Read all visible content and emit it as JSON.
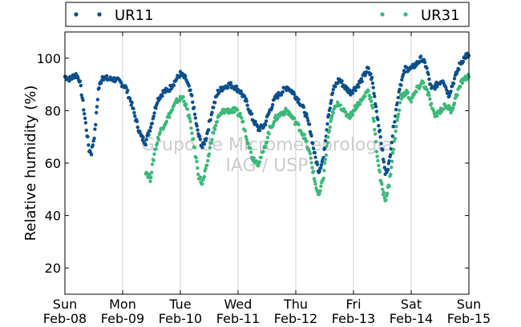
{
  "chart_data": {
    "type": "scatter",
    "title": "",
    "xlabel": "",
    "ylabel": "Relative humidity (%)",
    "xlim": [
      0,
      7
    ],
    "ylim": [
      10,
      110
    ],
    "yticks": [
      20,
      40,
      60,
      80,
      100
    ],
    "xticks": [
      {
        "day": 0,
        "weekday": "Sun",
        "date": "Feb-08"
      },
      {
        "day": 1,
        "weekday": "Mon",
        "date": "Feb-09"
      },
      {
        "day": 2,
        "weekday": "Tue",
        "date": "Feb-10"
      },
      {
        "day": 3,
        "weekday": "Wed",
        "date": "Feb-11"
      },
      {
        "day": 4,
        "weekday": "Thu",
        "date": "Feb-12"
      },
      {
        "day": 5,
        "weekday": "Fri",
        "date": "Feb-13"
      },
      {
        "day": 6,
        "weekday": "Sat",
        "date": "Feb-14"
      },
      {
        "day": 7,
        "weekday": "Sun",
        "date": "Feb-15"
      }
    ],
    "grid": "vertical",
    "legend_position": "top",
    "watermark": [
      "Grupo de Micrometeorologia",
      "IAG / USP"
    ],
    "series": [
      {
        "name": "UR11",
        "color": "#0b4f8c",
        "points": [
          [
            0.0,
            93
          ],
          [
            0.1,
            92
          ],
          [
            0.18,
            94
          ],
          [
            0.25,
            92
          ],
          [
            0.3,
            85
          ],
          [
            0.36,
            75
          ],
          [
            0.42,
            65
          ],
          [
            0.46,
            64
          ],
          [
            0.52,
            72
          ],
          [
            0.58,
            88
          ],
          [
            0.65,
            93
          ],
          [
            0.75,
            92
          ],
          [
            0.85,
            92
          ],
          [
            0.95,
            91
          ],
          [
            1.05,
            89
          ],
          [
            1.15,
            83
          ],
          [
            1.25,
            75
          ],
          [
            1.32,
            70
          ],
          [
            1.4,
            68
          ],
          [
            1.5,
            75
          ],
          [
            1.6,
            84
          ],
          [
            1.7,
            87
          ],
          [
            1.8,
            88
          ],
          [
            1.9,
            91
          ],
          [
            2.0,
            94
          ],
          [
            2.1,
            92
          ],
          [
            2.2,
            85
          ],
          [
            2.3,
            72
          ],
          [
            2.38,
            66
          ],
          [
            2.45,
            70
          ],
          [
            2.55,
            80
          ],
          [
            2.65,
            87
          ],
          [
            2.75,
            89
          ],
          [
            2.85,
            90
          ],
          [
            2.95,
            89
          ],
          [
            3.05,
            87
          ],
          [
            3.15,
            83
          ],
          [
            3.25,
            77
          ],
          [
            3.35,
            73
          ],
          [
            3.45,
            74
          ],
          [
            3.55,
            80
          ],
          [
            3.65,
            85
          ],
          [
            3.75,
            87
          ],
          [
            3.85,
            89
          ],
          [
            3.95,
            87
          ],
          [
            4.05,
            84
          ],
          [
            4.15,
            80
          ],
          [
            4.25,
            73
          ],
          [
            4.33,
            63
          ],
          [
            4.4,
            57
          ],
          [
            4.48,
            62
          ],
          [
            4.56,
            78
          ],
          [
            4.65,
            88
          ],
          [
            4.75,
            92
          ],
          [
            4.85,
            89
          ],
          [
            4.95,
            87
          ],
          [
            5.05,
            89
          ],
          [
            5.15,
            92
          ],
          [
            5.25,
            96
          ],
          [
            5.32,
            92
          ],
          [
            5.4,
            80
          ],
          [
            5.48,
            68
          ],
          [
            5.55,
            56
          ],
          [
            5.62,
            60
          ],
          [
            5.7,
            75
          ],
          [
            5.8,
            89
          ],
          [
            5.9,
            96
          ],
          [
            6.0,
            96
          ],
          [
            6.1,
            98
          ],
          [
            6.18,
            100
          ],
          [
            6.26,
            97
          ],
          [
            6.35,
            88
          ],
          [
            6.45,
            90
          ],
          [
            6.55,
            92
          ],
          [
            6.65,
            86
          ],
          [
            6.75,
            92
          ],
          [
            6.85,
            98
          ],
          [
            6.95,
            101
          ],
          [
            7.0,
            101
          ]
        ]
      },
      {
        "name": "UR31",
        "color": "#3db879",
        "points": [
          [
            1.4,
            57
          ],
          [
            1.48,
            54
          ],
          [
            1.56,
            65
          ],
          [
            1.65,
            72
          ],
          [
            1.75,
            76
          ],
          [
            1.85,
            80
          ],
          [
            1.95,
            84
          ],
          [
            2.05,
            85
          ],
          [
            2.15,
            78
          ],
          [
            2.25,
            65
          ],
          [
            2.32,
            55
          ],
          [
            2.38,
            52
          ],
          [
            2.45,
            58
          ],
          [
            2.55,
            70
          ],
          [
            2.65,
            77
          ],
          [
            2.75,
            80
          ],
          [
            2.85,
            80
          ],
          [
            2.95,
            80
          ],
          [
            3.05,
            78
          ],
          [
            3.15,
            70
          ],
          [
            3.25,
            62
          ],
          [
            3.35,
            60
          ],
          [
            3.45,
            65
          ],
          [
            3.55,
            73
          ],
          [
            3.65,
            77
          ],
          [
            3.75,
            79
          ],
          [
            3.85,
            80
          ],
          [
            3.95,
            77
          ],
          [
            4.05,
            74
          ],
          [
            4.15,
            70
          ],
          [
            4.25,
            63
          ],
          [
            4.33,
            53
          ],
          [
            4.4,
            47
          ],
          [
            4.48,
            55
          ],
          [
            4.56,
            70
          ],
          [
            4.65,
            80
          ],
          [
            4.75,
            83
          ],
          [
            4.85,
            79
          ],
          [
            4.95,
            78
          ],
          [
            5.05,
            82
          ],
          [
            5.15,
            84
          ],
          [
            5.25,
            88
          ],
          [
            5.32,
            83
          ],
          [
            5.4,
            65
          ],
          [
            5.48,
            52
          ],
          [
            5.55,
            46
          ],
          [
            5.62,
            52
          ],
          [
            5.72,
            70
          ],
          [
            5.82,
            85
          ],
          [
            5.92,
            87
          ],
          [
            6.0,
            84
          ],
          [
            6.1,
            88
          ],
          [
            6.2,
            91
          ],
          [
            6.3,
            86
          ],
          [
            6.4,
            78
          ],
          [
            6.5,
            80
          ],
          [
            6.6,
            82
          ],
          [
            6.7,
            80
          ],
          [
            6.8,
            87
          ],
          [
            6.9,
            92
          ],
          [
            7.0,
            93
          ]
        ]
      }
    ]
  }
}
